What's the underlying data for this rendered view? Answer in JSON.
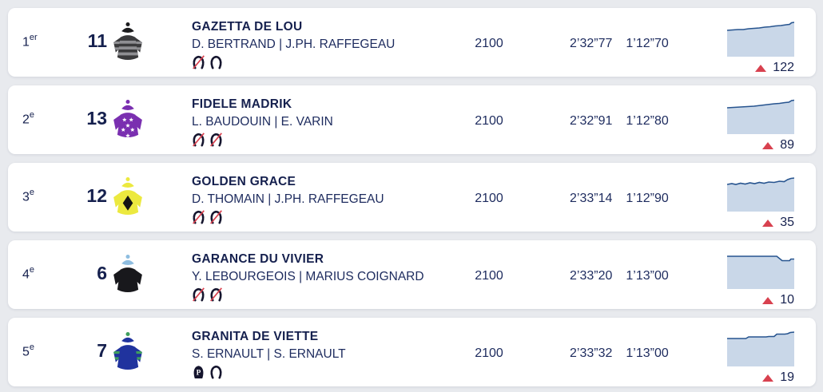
{
  "colors": {
    "background": "#e8eaee",
    "card": "#ffffff",
    "text_navy": "#15204e",
    "text_body": "#1d2b5e",
    "red": "#d8414f",
    "spark_fill": "#c9d7e8",
    "spark_line": "#27548f",
    "shoe": "#15152e"
  },
  "rows": [
    {
      "rank": "1",
      "rank_suffix": "er",
      "number": "11",
      "horse": "GAZETTA DE LOU",
      "people": "D. BERTRAND | J.PH. RAFFEGEAU",
      "shoes": [
        "crossed",
        "plain"
      ],
      "distance": "2100",
      "time1": "2’32”77",
      "time2": "1’12”70",
      "odds": "122",
      "trend": "up",
      "silk": {
        "body": "#3a3a3c",
        "pattern": "hoops",
        "pattern_color": "#8e8e92",
        "sleeve": "#3a3a3c",
        "sleeve_stripe": "#8e8e92",
        "cap": "#1c1c1e",
        "pompom": "#1c1c1e"
      },
      "spark": [
        [
          0,
          12
        ],
        [
          8,
          11.5
        ],
        [
          16,
          11
        ],
        [
          24,
          11
        ],
        [
          32,
          10
        ],
        [
          40,
          9.5
        ],
        [
          48,
          9
        ],
        [
          56,
          8
        ],
        [
          64,
          7.5
        ],
        [
          72,
          6.5
        ],
        [
          80,
          6
        ],
        [
          88,
          5
        ],
        [
          93,
          4.5
        ],
        [
          96,
          2.5
        ],
        [
          100,
          2
        ]
      ]
    },
    {
      "rank": "2",
      "rank_suffix": "e",
      "number": "13",
      "horse": "FIDELE MADRIK",
      "people": "L. BAUDOUIN | E. VARIN",
      "shoes": [
        "crossed",
        "crossed"
      ],
      "distance": "2100",
      "time1": "2’32”91",
      "time2": "1’12”80",
      "odds": "89",
      "trend": "up",
      "silk": {
        "body": "#7a2fb0",
        "pattern": "stars",
        "pattern_color": "#ffffff",
        "sleeve": "#7a2fb0",
        "cap": "#7a2fb0",
        "pompom": "#7a2fb0"
      },
      "spark": [
        [
          0,
          12
        ],
        [
          10,
          11.5
        ],
        [
          20,
          11
        ],
        [
          30,
          10.5
        ],
        [
          40,
          10
        ],
        [
          50,
          9
        ],
        [
          60,
          8
        ],
        [
          70,
          7
        ],
        [
          78,
          6.5
        ],
        [
          86,
          5.5
        ],
        [
          92,
          5
        ],
        [
          96,
          3
        ],
        [
          100,
          2.5
        ]
      ]
    },
    {
      "rank": "3",
      "rank_suffix": "e",
      "number": "12",
      "horse": "GOLDEN GRACE",
      "people": "D. THOMAIN | J.PH. RAFFEGEAU",
      "shoes": [
        "crossed",
        "crossed"
      ],
      "distance": "2100",
      "time1": "2’33”14",
      "time2": "1’12”90",
      "odds": "35",
      "trend": "up",
      "silk": {
        "body": "#ece93f",
        "pattern": "diamond",
        "pattern_color": "#141414",
        "sleeve": "#ece93f",
        "cap": "#ece93f",
        "pompom": "#ece93f"
      },
      "spark": [
        [
          0,
          11
        ],
        [
          7,
          10
        ],
        [
          13,
          11
        ],
        [
          20,
          9.5
        ],
        [
          27,
          10.5
        ],
        [
          34,
          9
        ],
        [
          41,
          10
        ],
        [
          48,
          8.5
        ],
        [
          55,
          9.5
        ],
        [
          62,
          8
        ],
        [
          70,
          8.5
        ],
        [
          78,
          7
        ],
        [
          85,
          7.5
        ],
        [
          90,
          5
        ],
        [
          95,
          3.5
        ],
        [
          100,
          3
        ]
      ]
    },
    {
      "rank": "4",
      "rank_suffix": "e",
      "number": "6",
      "horse": "GARANCE DU VIVIER",
      "people": "Y. LEBOURGEOIS | MARIUS COIGNARD",
      "shoes": [
        "crossed",
        "crossed"
      ],
      "distance": "2100",
      "time1": "2’33”20",
      "time2": "1’13”00",
      "odds": "10",
      "trend": "up",
      "silk": {
        "body": "#18181c",
        "pattern": "plain",
        "sleeve": "#18181c",
        "cap": "#8ebde0",
        "pompom": "#8ebde0"
      },
      "spark": [
        [
          0,
          4
        ],
        [
          74,
          4
        ],
        [
          82,
          9.5
        ],
        [
          93,
          9.5
        ],
        [
          95,
          7.5
        ],
        [
          100,
          7.5
        ]
      ]
    },
    {
      "rank": "5",
      "rank_suffix": "e",
      "number": "7",
      "horse": "GRANITA DE VIETTE",
      "people": "S. ERNAULT | S. ERNAULT",
      "shoes": [
        "p",
        "plain"
      ],
      "distance": "2100",
      "time1": "2’33”32",
      "time2": "1’13”00",
      "odds": "19",
      "trend": "up",
      "silk": {
        "body": "#20339e",
        "pattern": "plain",
        "sleeve": "#20339e",
        "sleeve_stripe": "#3f9e5e",
        "cap": "#20339e",
        "pompom": "#3f9e5e"
      },
      "spark": [
        [
          0,
          10
        ],
        [
          28,
          10
        ],
        [
          32,
          8
        ],
        [
          58,
          8
        ],
        [
          62,
          7.5
        ],
        [
          70,
          7.5
        ],
        [
          74,
          4.5
        ],
        [
          86,
          4.5
        ],
        [
          90,
          4
        ],
        [
          94,
          2.5
        ],
        [
          100,
          2
        ]
      ]
    }
  ]
}
